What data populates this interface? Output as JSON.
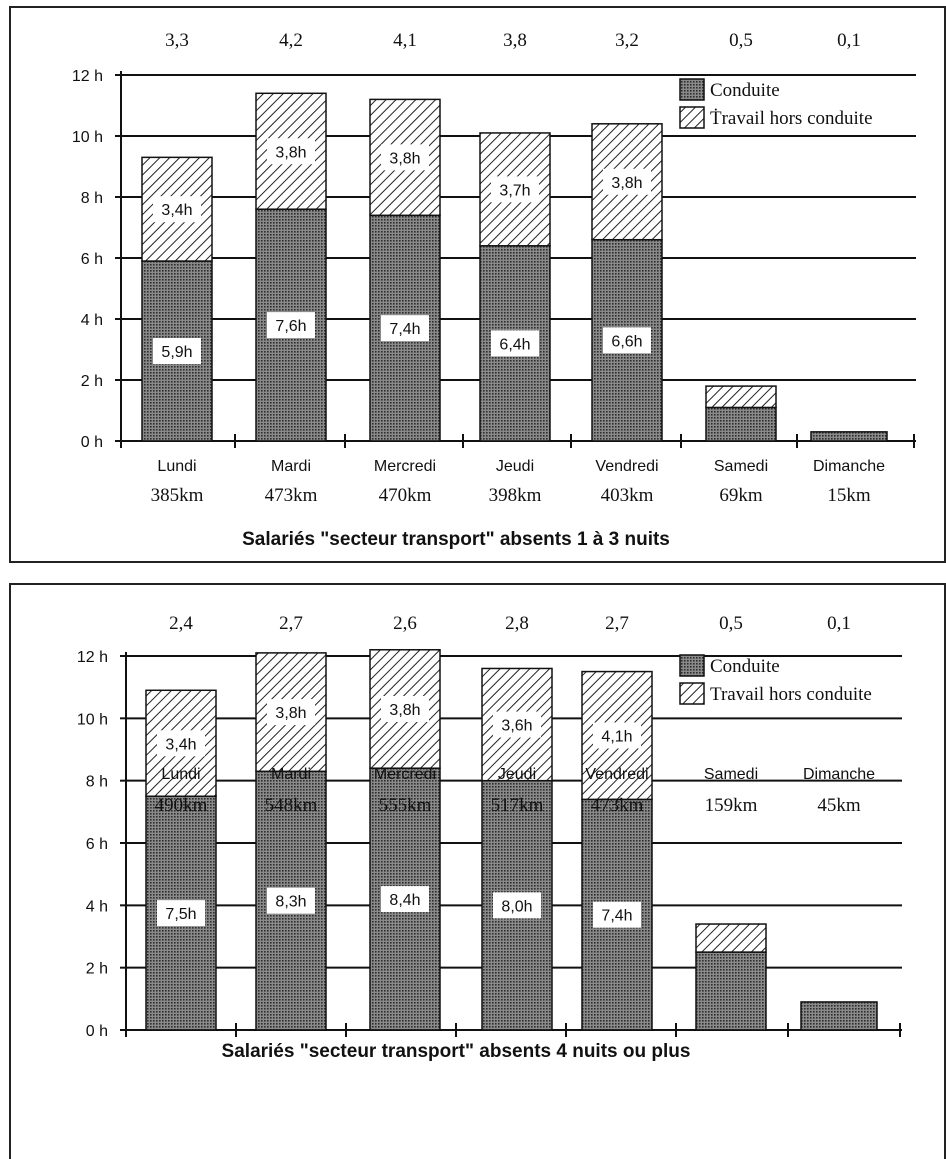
{
  "chart_data": [
    {
      "type": "bar",
      "stacked": true,
      "title": "Salariés \"secteur transport\" absents 1 à 3 nuits",
      "categories": [
        "Lundi",
        "Mardi",
        "Mercredi",
        "Jeudi",
        "Vendredi",
        "Samedi",
        "Dimanche"
      ],
      "distances": [
        "385km",
        "473km",
        "470km",
        "398km",
        "403km",
        "69km",
        "15km"
      ],
      "top_values": [
        "3,3",
        "4,2",
        "4,1",
        "3,8",
        "3,2",
        "0,5",
        "0,1"
      ],
      "y_ticks": [
        "0 h",
        "2 h",
        "4 h",
        "6 h",
        "8 h",
        "10 h",
        "12 h"
      ],
      "ylim": [
        0,
        12
      ],
      "grid": true,
      "legend_position": "top-right",
      "series": [
        {
          "name": "Conduite",
          "values": [
            5.9,
            7.6,
            7.4,
            6.4,
            6.6,
            1.1,
            0.3
          ],
          "labels": [
            "5,9h",
            "7,6h",
            "7,4h",
            "6,4h",
            "6,6h",
            "",
            ""
          ]
        },
        {
          "name": "Ṫravail hors conduite",
          "values": [
            3.4,
            3.8,
            3.8,
            3.7,
            3.8,
            0.7,
            0
          ],
          "labels": [
            "3,4h",
            "3,8h",
            "3,8h",
            "3,7h",
            "3,8h",
            "",
            ""
          ]
        }
      ],
      "colors": {
        "conduite": "#3a3a3a",
        "hors_conduite": "#ffffff"
      }
    },
    {
      "type": "bar",
      "stacked": true,
      "title": "Salariés \"secteur transport\" absents 4 nuits ou plus",
      "categories": [
        "Lundi",
        "Mardi",
        "Mercredi",
        "Jeudi",
        "Vendredi",
        "Samedi",
        "Dimanche"
      ],
      "distances": [
        "490km",
        "548km",
        "555km",
        "517km",
        "473km",
        "159km",
        "45km"
      ],
      "top_values": [
        "2,4",
        "2,7",
        "2,6",
        "2,8",
        "2,7",
        "0,5",
        "0,1"
      ],
      "y_ticks": [
        "0 h",
        "2 h",
        "4 h",
        "6 h",
        "8 h",
        "10 h",
        "12 h"
      ],
      "ylim": [
        0,
        12
      ],
      "grid": true,
      "legend_position": "top-right",
      "series": [
        {
          "name": "Conduite",
          "values": [
            7.5,
            8.3,
            8.4,
            8.0,
            7.4,
            2.5,
            0.9
          ],
          "labels": [
            "7,5h",
            "8,3h",
            "8,4h",
            "8,0h",
            "7,4h",
            "",
            ""
          ]
        },
        {
          "name": "Travail hors conduite",
          "values": [
            3.4,
            3.8,
            3.8,
            3.6,
            4.1,
            0.9,
            0
          ],
          "labels": [
            "3,4h",
            "3,8h",
            "3,8h",
            "3,6h",
            "4,1h",
            "",
            ""
          ]
        }
      ],
      "colors": {
        "conduite": "#3a3a3a",
        "hors_conduite": "#ffffff"
      }
    }
  ]
}
